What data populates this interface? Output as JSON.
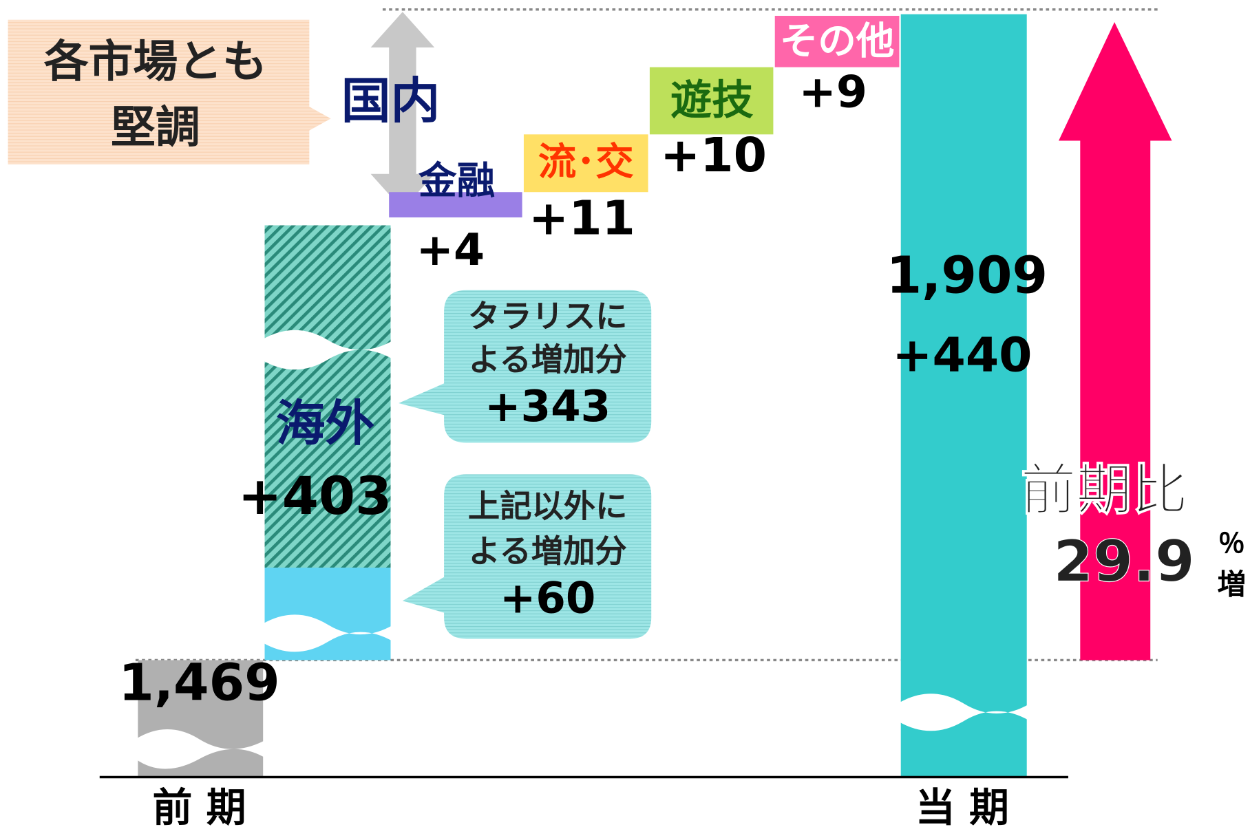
{
  "callout": {
    "lines": [
      "各市場とも",
      "堅調"
    ]
  },
  "domestic": {
    "label": "国内"
  },
  "segments": [
    {
      "label": "金融",
      "change": "+4"
    },
    {
      "label": "流･交",
      "change": "+11"
    },
    {
      "label": "遊技",
      "change": "+10"
    },
    {
      "label": "その他",
      "change": "+9"
    }
  ],
  "overseas": {
    "label": "海外",
    "change": "+403"
  },
  "notes": [
    {
      "lines": [
        "タラリスに",
        "よる増加分"
      ],
      "change": "+343"
    },
    {
      "lines": [
        "上記以外に",
        "よる増加分"
      ],
      "change": "+60"
    }
  ],
  "previous": {
    "label": "前 期",
    "value": "1,469"
  },
  "current": {
    "label": "当 期",
    "value": "1,909",
    "change": "+440"
  },
  "growth": {
    "label": "前期比",
    "value": "29.9",
    "unit": "％",
    "suffix": "増"
  }
}
